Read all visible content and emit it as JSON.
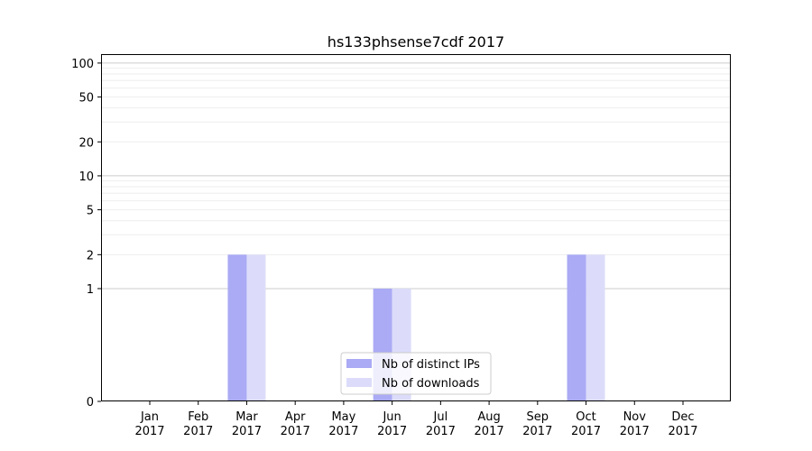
{
  "chart_data": {
    "type": "bar",
    "title": "hs133phsense7cdf 2017",
    "xlabel": "",
    "ylabel": "",
    "y_scale": "symlog",
    "ylim": [
      0,
      120
    ],
    "y_ticks": [
      0,
      1,
      2,
      5,
      10,
      20,
      50,
      100
    ],
    "categories": [
      "Jan\n2017",
      "Feb\n2017",
      "Mar\n2017",
      "Apr\n2017",
      "May\n2017",
      "Jun\n2017",
      "Jul\n2017",
      "Aug\n2017",
      "Sep\n2017",
      "Oct\n2017",
      "Nov\n2017",
      "Dec\n2017"
    ],
    "series": [
      {
        "name": "Nb of distinct IPs",
        "color": "#aaaaf5",
        "values": [
          0,
          0,
          2,
          0,
          0,
          1,
          0,
          0,
          0,
          2,
          0,
          0
        ]
      },
      {
        "name": "Nb of downloads",
        "color": "#dcdcfa",
        "values": [
          0,
          0,
          2,
          0,
          0,
          1,
          0,
          0,
          0,
          2,
          0,
          0
        ]
      }
    ],
    "grid": true,
    "legend_position": "lower-center"
  }
}
